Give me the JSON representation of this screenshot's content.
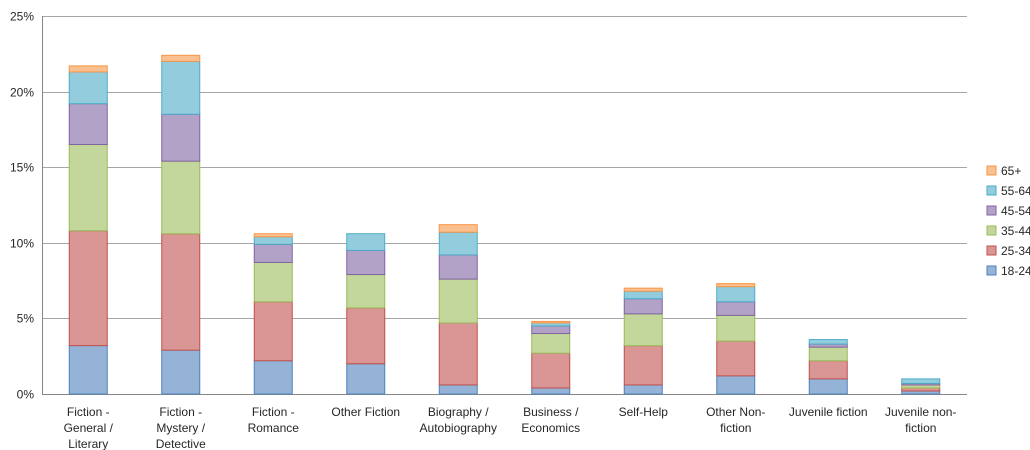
{
  "chart_data": {
    "type": "bar",
    "stacked": true,
    "title": "",
    "xlabel": "",
    "ylabel": "",
    "ylim": [
      0,
      25
    ],
    "y_ticks": [
      "0%",
      "5%",
      "10%",
      "15%",
      "20%",
      "25%"
    ],
    "grid": true,
    "legend_position": "right",
    "categories": [
      [
        "Fiction -",
        "General /",
        "Literary"
      ],
      [
        "Fiction -",
        "Mystery /",
        "Detective"
      ],
      [
        "Fiction -",
        "Romance"
      ],
      [
        "Other Fiction"
      ],
      [
        "Biography /",
        "Autobiography"
      ],
      [
        "Business /",
        "Economics"
      ],
      [
        "Self-Help"
      ],
      [
        "Other Non-",
        "fiction"
      ],
      [
        "Juvenile fiction"
      ],
      [
        "Juvenile non-",
        "fiction"
      ]
    ],
    "series": [
      {
        "name": "18-24",
        "color": "#95B3D7",
        "stroke": "#4F81BD",
        "values": [
          3.2,
          2.9,
          2.2,
          2.0,
          0.6,
          0.4,
          0.6,
          1.2,
          1.0,
          0.2
        ]
      },
      {
        "name": "25-34",
        "color": "#D99694",
        "stroke": "#C0504D",
        "values": [
          7.6,
          7.7,
          3.9,
          3.7,
          4.1,
          2.3,
          2.6,
          2.3,
          1.2,
          0.2
        ]
      },
      {
        "name": "35-44",
        "color": "#C3D69B",
        "stroke": "#9BBB59",
        "values": [
          5.7,
          4.8,
          2.6,
          2.2,
          2.9,
          1.3,
          2.1,
          1.7,
          0.9,
          0.2
        ]
      },
      {
        "name": "45-54",
        "color": "#B3A2C7",
        "stroke": "#8064A2",
        "values": [
          2.7,
          3.1,
          1.2,
          1.6,
          1.6,
          0.5,
          1.0,
          0.9,
          0.2,
          0.1
        ]
      },
      {
        "name": "55-64",
        "color": "#93CDDD",
        "stroke": "#4BACC6",
        "values": [
          2.1,
          3.5,
          0.5,
          1.1,
          1.5,
          0.2,
          0.5,
          1.0,
          0.3,
          0.3
        ]
      },
      {
        "name": "65+",
        "color": "#FAC090",
        "stroke": "#F79646",
        "values": [
          0.4,
          0.4,
          0.2,
          0.0,
          0.5,
          0.1,
          0.2,
          0.2,
          0.0,
          0.0
        ]
      }
    ]
  }
}
